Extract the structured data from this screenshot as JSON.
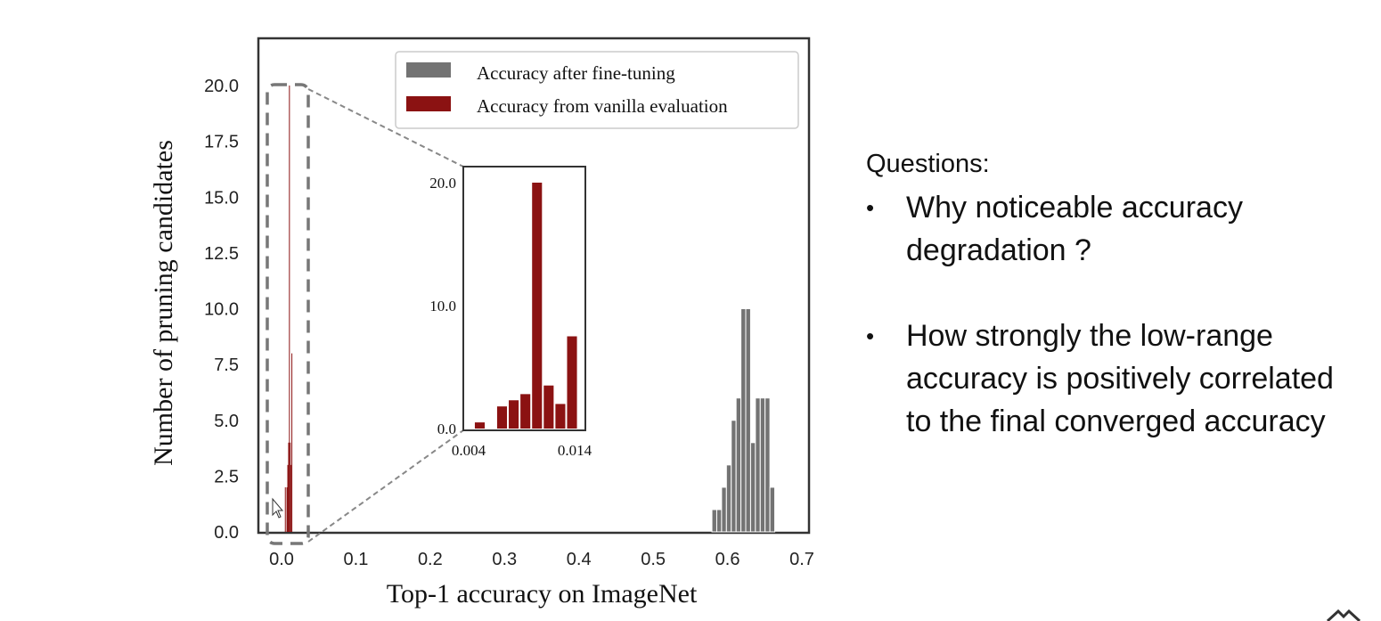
{
  "chart_data": [
    {
      "type": "bar",
      "title": "",
      "xlabel": "Top-1 accuracy on ImageNet",
      "ylabel": "Number of pruning candidates",
      "xlim": [
        -0.03,
        0.71
      ],
      "ylim": [
        0,
        22
      ],
      "xticks": [
        "0.0",
        "0.1",
        "0.2",
        "0.3",
        "0.4",
        "0.5",
        "0.6",
        "0.7"
      ],
      "yticks": [
        "0.0",
        "2.5",
        "5.0",
        "7.5",
        "10.0",
        "12.5",
        "15.0",
        "17.5",
        "20.0"
      ],
      "grid": false,
      "legend": "top-right",
      "series": [
        {
          "name": "Accuracy after fine-tuning",
          "color": "#737373",
          "bin_width": 0.0065,
          "x": [
            0.579,
            0.5855,
            0.592,
            0.5985,
            0.605,
            0.6115,
            0.618,
            0.6245,
            0.631,
            0.6375,
            0.644,
            0.6505,
            0.657,
            0.6635,
            0.67
          ],
          "values": [
            1,
            1,
            2,
            3,
            5,
            6,
            10,
            10,
            4,
            6,
            6,
            6,
            2,
            0,
            0
          ]
        },
        {
          "name": "Accuracy from vanilla evaluation",
          "color": "#8b1212",
          "bin_width": 0.0011,
          "x": [
            0.0045,
            0.0056,
            0.0067,
            0.0078,
            0.0089,
            0.01,
            0.0111,
            0.0122,
            0.0133
          ],
          "values": [
            2,
            0,
            2,
            3,
            4,
            20,
            4,
            3,
            8
          ]
        }
      ]
    },
    {
      "type": "bar",
      "title": "",
      "xlabel": "",
      "ylabel": "",
      "xlim": [
        0.004,
        0.014
      ],
      "ylim": [
        0,
        23
      ],
      "xticks": [
        "0.004",
        "0.014"
      ],
      "yticks": [
        "0.0",
        "10.0",
        "20.0"
      ],
      "series": [
        {
          "name": "",
          "color": "#8b1212",
          "x": [
            0.0045,
            0.0066,
            0.0077,
            0.0088,
            0.0099,
            0.011,
            0.0121,
            0.0132
          ],
          "values": [
            0.5,
            1.8,
            2.3,
            2.8,
            20.0,
            3.5,
            2.0,
            7.5
          ]
        }
      ]
    }
  ],
  "questions": {
    "heading": "Questions:",
    "bullet_symbol": "•",
    "items": [
      {
        "text": "Why noticeable accuracy degradation ?"
      },
      {
        "text": "How strongly the low-range accuracy is positively correlated to the final converged accuracy"
      }
    ]
  }
}
